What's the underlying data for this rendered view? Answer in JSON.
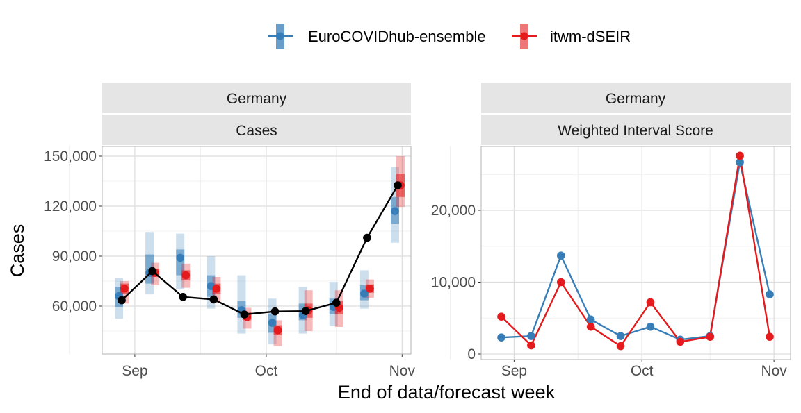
{
  "legend": {
    "items": [
      {
        "label": "EuroCOVIDhub-ensemble",
        "color": "#377EB8"
      },
      {
        "label": "itwm-dSEIR",
        "color": "#E41A1C"
      }
    ]
  },
  "axis": {
    "xlabel": "End of data/forecast week",
    "ylabel": "Cases"
  },
  "chart_data": [
    {
      "type": "line",
      "panel": "left",
      "strips": [
        "Germany",
        "Cases"
      ],
      "y_ticks": [
        60000,
        90000,
        120000,
        150000
      ],
      "y_tick_labels": [
        "60,000",
        "90,000",
        "120,000",
        "150,000"
      ],
      "x_ticks": [
        "Sep",
        "Oct",
        "Nov"
      ],
      "grid": true,
      "truth": {
        "color": "#000000",
        "dates": [
          "2021-08-29",
          "2021-09-05",
          "2021-09-12",
          "2021-09-19",
          "2021-09-26",
          "2021-10-03",
          "2021-10-10",
          "2021-10-17",
          "2021-10-24",
          "2021-10-31"
        ],
        "values": [
          63500,
          81000,
          65500,
          64000,
          55000,
          56800,
          57000,
          62000,
          101000,
          132500
        ]
      },
      "forecasts": [
        {
          "name": "EuroCOVIDhub-ensemble",
          "color": "#377EB8",
          "points": [
            {
              "date": "2021-08-29",
              "median": 66000,
              "inner": [
                59500,
                71500
              ],
              "outer": [
                52500,
                77000
              ]
            },
            {
              "date": "2021-09-05",
              "median": 80000,
              "inner": [
                73500,
                91000
              ],
              "outer": [
                67000,
                104500
              ]
            },
            {
              "date": "2021-09-12",
              "median": 89000,
              "inner": [
                78500,
                94000
              ],
              "outer": [
                70000,
                103500
              ]
            },
            {
              "date": "2021-09-19",
              "median": 72000,
              "inner": [
                65500,
                78500
              ],
              "outer": [
                58500,
                90000
              ]
            },
            {
              "date": "2021-09-26",
              "median": 57500,
              "inner": [
                53000,
                63000
              ],
              "outer": [
                43500,
                78500
              ]
            },
            {
              "date": "2021-10-03",
              "median": 50000,
              "inner": [
                44000,
                55500
              ],
              "outer": [
                37000,
                64500
              ]
            },
            {
              "date": "2021-10-10",
              "median": 54500,
              "inner": [
                51500,
                61500
              ],
              "outer": [
                43500,
                71500
              ]
            },
            {
              "date": "2021-10-17",
              "median": 59500,
              "inner": [
                55000,
                64500
              ],
              "outer": [
                48000,
                74500
              ]
            },
            {
              "date": "2021-10-24",
              "median": 67500,
              "inner": [
                63500,
                72500
              ],
              "outer": [
                58500,
                81500
              ]
            },
            {
              "date": "2021-10-31",
              "median": 117000,
              "inner": [
                109500,
                125500
              ],
              "outer": [
                98000,
                143500
              ]
            }
          ]
        },
        {
          "name": "itwm-dSEIR",
          "color": "#E41A1C",
          "points": [
            {
              "date": "2021-08-29",
              "median": 70500,
              "inner": [
                67500,
                73500
              ],
              "outer": [
                61500,
                75000
              ]
            },
            {
              "date": "2021-09-05",
              "median": 80000,
              "inner": [
                77500,
                82500
              ],
              "outer": [
                72500,
                86000
              ]
            },
            {
              "date": "2021-09-12",
              "median": 78500,
              "inner": [
                75500,
                81500
              ],
              "outer": [
                71000,
                85500
              ]
            },
            {
              "date": "2021-09-19",
              "median": 70500,
              "inner": [
                67500,
                73500
              ],
              "outer": [
                62000,
                77500
              ]
            },
            {
              "date": "2021-09-26",
              "median": 53500,
              "inner": [
                51500,
                56500
              ],
              "outer": [
                46500,
                59000
              ]
            },
            {
              "date": "2021-10-03",
              "median": 45500,
              "inner": [
                42500,
                48500
              ],
              "outer": [
                36000,
                51500
              ]
            },
            {
              "date": "2021-10-10",
              "median": 57500,
              "inner": [
                53000,
                61500
              ],
              "outer": [
                45000,
                69500
              ]
            },
            {
              "date": "2021-10-17",
              "median": 59000,
              "inner": [
                55000,
                63000
              ],
              "outer": [
                47500,
                69500
              ]
            },
            {
              "date": "2021-10-24",
              "median": 70500,
              "inner": [
                68000,
                73000
              ],
              "outer": [
                65000,
                76000
              ]
            },
            {
              "date": "2021-10-31",
              "median": 132500,
              "inner": [
                125500,
                139500
              ],
              "outer": [
                119500,
                150000
              ]
            }
          ]
        }
      ]
    },
    {
      "type": "line",
      "panel": "right",
      "strips": [
        "Germany",
        "Weighted Interval Score"
      ],
      "y_ticks": [
        0,
        10000,
        20000
      ],
      "y_tick_labels": [
        "0",
        "10,000",
        "20,000"
      ],
      "x_ticks": [
        "Sep",
        "Oct",
        "Nov"
      ],
      "grid": true,
      "series": [
        {
          "name": "EuroCOVIDhub-ensemble",
          "color": "#377EB8",
          "dates": [
            "2021-08-29",
            "2021-09-05",
            "2021-09-12",
            "2021-09-19",
            "2021-09-26",
            "2021-10-03",
            "2021-10-10",
            "2021-10-17",
            "2021-10-24",
            "2021-10-31"
          ],
          "values": [
            2300,
            2500,
            13700,
            4800,
            2500,
            3800,
            2000,
            2500,
            26700,
            8300
          ]
        },
        {
          "name": "itwm-dSEIR",
          "color": "#E41A1C",
          "dates": [
            "2021-08-29",
            "2021-09-05",
            "2021-09-12",
            "2021-09-19",
            "2021-09-26",
            "2021-10-03",
            "2021-10-10",
            "2021-10-17",
            "2021-10-24",
            "2021-10-31"
          ],
          "values": [
            5200,
            1200,
            10000,
            3800,
            1100,
            7200,
            1700,
            2400,
            27600,
            2400
          ]
        }
      ]
    }
  ]
}
